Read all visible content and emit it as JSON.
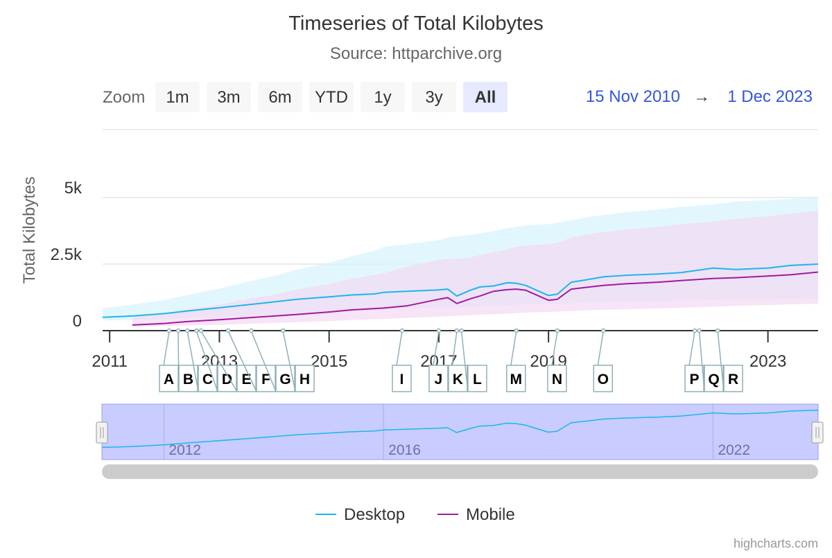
{
  "title": "Timeseries of Total Kilobytes",
  "subtitle": "Source: httparchive.org",
  "range_selector": {
    "label": "Zoom",
    "buttons": [
      "1m",
      "3m",
      "6m",
      "YTD",
      "1y",
      "3y",
      "All"
    ],
    "selected": "All",
    "from": "15 Nov 2010",
    "arrow": "→",
    "to": "1 Dec 2023"
  },
  "credits": "highcharts.com",
  "colors": {
    "desktop": "#1ab7e8",
    "mobile": "#a01a9f",
    "desktop_band": "#d6f3fc",
    "mobile_band": "#f3d9f3",
    "navigator_fill": "#c8ccff",
    "range_text": "#3355dd"
  },
  "chart_data": {
    "type": "line",
    "title": "Timeseries of Total Kilobytes",
    "subtitle": "Source: httparchive.org",
    "ylabel": "Total Kilobytes",
    "ylim": [
      0,
      5000
    ],
    "yticks": [
      "0",
      "2.5k",
      "5k"
    ],
    "xlim": [
      "2010-11-15",
      "2023-12-01"
    ],
    "xticks": [
      "2011",
      "2013",
      "2015",
      "2017",
      "2019",
      "2023"
    ],
    "navigator_ticks": [
      "2012",
      "2016",
      "2022"
    ],
    "legend_position": "bottom-center",
    "series": [
      {
        "name": "Desktop",
        "x": [
          "2010-11-15",
          "2011-06-01",
          "2012-01-01",
          "2012-06-01",
          "2013-01-01",
          "2013-06-01",
          "2014-01-01",
          "2014-06-01",
          "2015-01-01",
          "2015-06-01",
          "2015-11-01",
          "2016-01-01",
          "2016-06-01",
          "2017-01-01",
          "2017-03-01",
          "2017-05-01",
          "2017-08-01",
          "2017-10-01",
          "2018-01-01",
          "2018-04-01",
          "2018-06-01",
          "2018-08-01",
          "2019-01-01",
          "2019-03-01",
          "2019-06-01",
          "2019-09-01",
          "2020-01-01",
          "2020-06-01",
          "2021-01-01",
          "2021-06-01",
          "2022-01-01",
          "2022-06-01",
          "2023-01-01",
          "2023-06-01",
          "2023-12-01"
        ],
        "values": [
          500,
          550,
          640,
          740,
          860,
          950,
          1080,
          1180,
          1270,
          1340,
          1380,
          1440,
          1480,
          1530,
          1560,
          1300,
          1520,
          1640,
          1680,
          1800,
          1780,
          1700,
          1320,
          1370,
          1820,
          1900,
          2020,
          2080,
          2130,
          2180,
          2350,
          2300,
          2350,
          2450,
          2500
        ],
        "band_low": [
          380,
          400,
          440,
          480,
          520,
          560,
          610,
          650,
          690,
          730,
          760,
          790,
          820,
          860,
          880,
          880,
          900,
          920,
          940,
          960,
          970,
          980,
          1000,
          1010,
          1030,
          1050,
          1070,
          1090,
          1110,
          1130,
          1150,
          1170,
          1180,
          1190,
          1200
        ],
        "band_high": [
          850,
          980,
          1150,
          1350,
          1580,
          1800,
          2050,
          2300,
          2550,
          2800,
          3000,
          3150,
          3250,
          3400,
          3500,
          3550,
          3600,
          3650,
          3750,
          3850,
          3900,
          3950,
          4000,
          4050,
          4150,
          4250,
          4350,
          4450,
          4550,
          4650,
          4750,
          4850,
          4900,
          4950,
          5000
        ]
      },
      {
        "name": "Mobile",
        "x": [
          "2011-06-01",
          "2012-01-01",
          "2012-06-01",
          "2013-01-01",
          "2013-06-01",
          "2014-01-01",
          "2014-06-01",
          "2015-01-01",
          "2015-06-01",
          "2016-01-01",
          "2016-06-01",
          "2017-01-01",
          "2017-03-01",
          "2017-05-01",
          "2017-08-01",
          "2017-10-01",
          "2018-01-01",
          "2018-04-01",
          "2018-06-01",
          "2018-08-01",
          "2019-01-01",
          "2019-03-01",
          "2019-06-01",
          "2019-09-01",
          "2020-01-01",
          "2020-06-01",
          "2021-01-01",
          "2021-06-01",
          "2022-01-01",
          "2022-06-01",
          "2023-01-01",
          "2023-06-01",
          "2023-12-01"
        ],
        "values": [
          210,
          270,
          340,
          410,
          470,
          550,
          610,
          700,
          780,
          850,
          930,
          1180,
          1240,
          1020,
          1200,
          1300,
          1480,
          1540,
          1560,
          1520,
          1140,
          1180,
          1560,
          1620,
          1700,
          1760,
          1820,
          1880,
          1960,
          1990,
          2050,
          2100,
          2200
        ],
        "band_low": [
          150,
          170,
          190,
          220,
          250,
          290,
          320,
          360,
          400,
          440,
          480,
          520,
          540,
          560,
          580,
          600,
          620,
          640,
          660,
          680,
          700,
          720,
          740,
          760,
          780,
          800,
          830,
          860,
          900,
          930,
          960,
          990,
          1010
        ],
        "band_high": [
          500,
          650,
          800,
          980,
          1150,
          1350,
          1550,
          1750,
          1950,
          2150,
          2400,
          2650,
          2700,
          2700,
          2750,
          2850,
          2950,
          3050,
          3150,
          3200,
          3250,
          3300,
          3500,
          3600,
          3700,
          3800,
          3900,
          4000,
          4100,
          4200,
          4300,
          4400,
          4500
        ]
      }
    ],
    "annotations": [
      {
        "label": "A",
        "x": "2012-02-01"
      },
      {
        "label": "B",
        "x": "2012-04-01"
      },
      {
        "label": "C",
        "x": "2012-06-01"
      },
      {
        "label": "D",
        "x": "2012-08-01"
      },
      {
        "label": "E",
        "x": "2012-09-01"
      },
      {
        "label": "F",
        "x": "2013-03-01"
      },
      {
        "label": "G",
        "x": "2013-08-01"
      },
      {
        "label": "H",
        "x": "2014-03-01"
      },
      {
        "label": "I",
        "x": "2016-05-01"
      },
      {
        "label": "J",
        "x": "2017-01-01"
      },
      {
        "label": "K",
        "x": "2017-05-01"
      },
      {
        "label": "L",
        "x": "2017-06-01"
      },
      {
        "label": "M",
        "x": "2018-06-01"
      },
      {
        "label": "N",
        "x": "2019-03-01"
      },
      {
        "label": "O",
        "x": "2020-01-01"
      },
      {
        "label": "P",
        "x": "2021-09-01"
      },
      {
        "label": "Q",
        "x": "2021-10-01"
      },
      {
        "label": "R",
        "x": "2022-02-01"
      }
    ]
  }
}
